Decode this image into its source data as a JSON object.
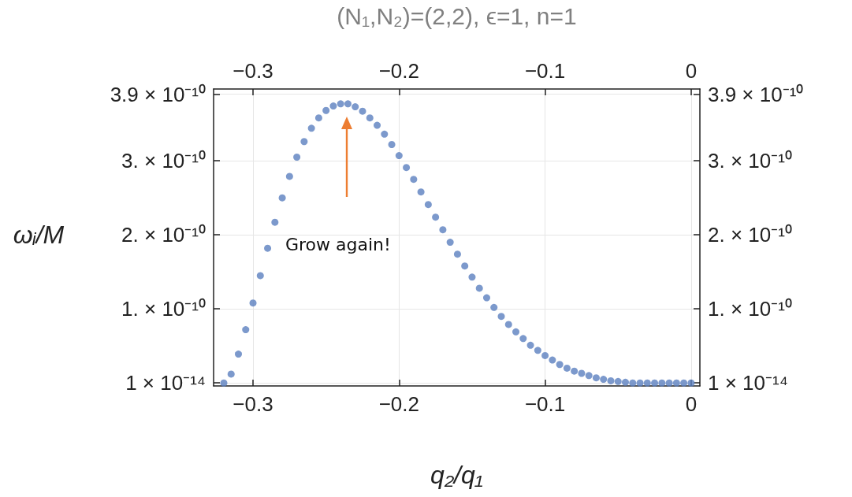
{
  "chart_data": {
    "type": "scatter",
    "title": "(N₁,N₂)=(2,2), ϵ=1, n=1",
    "xlabel": "q₂/q₁",
    "ylabel": "ωᵢ/M",
    "annotations": [
      "Grow again!"
    ],
    "x": [
      -0.32,
      -0.315,
      -0.31,
      -0.305,
      -0.3,
      -0.295,
      -0.29,
      -0.285,
      -0.28,
      -0.275,
      -0.27,
      -0.265,
      -0.26,
      -0.255,
      -0.25,
      -0.245,
      -0.24,
      -0.235,
      -0.23,
      -0.225,
      -0.22,
      -0.215,
      -0.21,
      -0.205,
      -0.2,
      -0.195,
      -0.19,
      -0.185,
      -0.18,
      -0.175,
      -0.17,
      -0.165,
      -0.16,
      -0.155,
      -0.15,
      -0.145,
      -0.14,
      -0.135,
      -0.13,
      -0.125,
      -0.12,
      -0.115,
      -0.11,
      -0.105,
      -0.1,
      -0.095,
      -0.09,
      -0.085,
      -0.08,
      -0.075,
      -0.07,
      -0.065,
      -0.06,
      -0.055,
      -0.05,
      -0.045,
      -0.04,
      -0.035,
      -0.03,
      -0.025,
      -0.02,
      -0.015,
      -0.01,
      -0.005,
      0
    ],
    "series": [
      {
        "color": "#5b7fbf",
        "values": [
          0,
          1.2e-11,
          3.9e-11,
          7.2e-11,
          1.08e-10,
          1.45e-10,
          1.82e-10,
          2.17e-10,
          2.5e-10,
          2.79e-10,
          3.05e-10,
          3.26e-10,
          3.44e-10,
          3.58e-10,
          3.68e-10,
          3.74e-10,
          3.77e-10,
          3.77e-10,
          3.73e-10,
          3.67e-10,
          3.58e-10,
          3.48e-10,
          3.36e-10,
          3.22e-10,
          3.07e-10,
          2.91e-10,
          2.75e-10,
          2.58e-10,
          2.41e-10,
          2.24e-10,
          2.07e-10,
          1.9e-10,
          1.74e-10,
          1.58e-10,
          1.43e-10,
          1.28e-10,
          1.15e-10,
          1.02e-10,
          9e-11,
          7.9e-11,
          6.9e-11,
          6e-11,
          5.1e-11,
          4.4e-11,
          3.7e-11,
          3.1e-11,
          2.5e-11,
          2e-11,
          1.6e-11,
          1.3e-11,
          1e-11,
          7e-12,
          5e-12,
          3e-12,
          2e-12,
          1e-12,
          0,
          0,
          0,
          0,
          0,
          0,
          0,
          0,
          0
        ]
      }
    ],
    "xlim": [
      -0.327,
      0.006
    ],
    "xticks": [
      {
        "value": -0.3,
        "label": "−0.3"
      },
      {
        "value": -0.2,
        "label": "−0.2"
      },
      {
        "value": -0.1,
        "label": "−0.1"
      },
      0
    ],
    "x2lim": [
      -0.327,
      0.006
    ],
    "x2ticks": [
      {
        "value": -0.3,
        "label": "−0.3"
      },
      {
        "value": -0.2,
        "label": "−0.2"
      },
      {
        "value": -0.1,
        "label": "−0.1"
      },
      0
    ],
    "ylim": [
      -4e-12,
      3.97e-10
    ],
    "yticks": [
      {
        "value": 1e-14,
        "label": "1 × 10⁻¹⁴"
      },
      {
        "value": 1e-10,
        "label": "1. × 10⁻¹⁰"
      },
      {
        "value": 2e-10,
        "label": "2. × 10⁻¹⁰"
      },
      {
        "value": 3e-10,
        "label": "3. × 10⁻¹⁰"
      },
      {
        "value": 3.9e-10,
        "label": "3.9 × 10⁻¹⁰"
      }
    ],
    "y2lim": [
      -4e-12,
      3.97e-10
    ],
    "y2ticks": [
      {
        "value": 1e-14,
        "label": "1 × 10⁻¹⁴"
      },
      {
        "value": 1e-10,
        "label": "1. × 10⁻¹⁰"
      },
      {
        "value": 2e-10,
        "label": "2. × 10⁻¹⁰"
      },
      {
        "value": 3e-10,
        "label": "3. × 10⁻¹⁰"
      },
      {
        "value": 3.9e-10,
        "label": "3.9 × 10⁻¹⁰"
      }
    ],
    "grid": true,
    "marker": "circle"
  }
}
